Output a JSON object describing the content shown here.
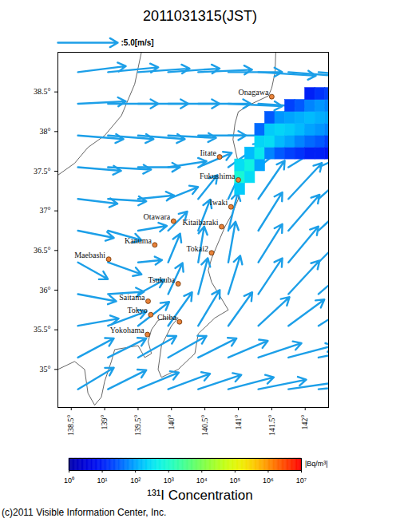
{
  "chart_data": {
    "type": "map",
    "title": "2011031315(JST)",
    "xlim": [
      138.3,
      142.35
    ],
    "ylim": [
      34.52,
      39.0
    ],
    "xticks": [
      {
        "value": 138.5,
        "label": "138.5°"
      },
      {
        "value": 139,
        "label": "139°"
      },
      {
        "value": 139.5,
        "label": "139.5°"
      },
      {
        "value": 140,
        "label": "140°"
      },
      {
        "value": 140.5,
        "label": "140.5°"
      },
      {
        "value": 141,
        "label": "141°"
      },
      {
        "value": 141.5,
        "label": "141.5°"
      },
      {
        "value": 142,
        "label": "142°"
      }
    ],
    "yticks": [
      {
        "value": 35,
        "label": "35°"
      },
      {
        "value": 35.5,
        "label": "35.5°"
      },
      {
        "value": 36,
        "label": "36°"
      },
      {
        "value": 36.5,
        "label": "36.5°"
      },
      {
        "value": 37,
        "label": "37°"
      },
      {
        "value": 37.5,
        "label": "37.5°"
      },
      {
        "value": 38,
        "label": "38°"
      },
      {
        "value": 38.5,
        "label": "38.5°"
      }
    ],
    "scale_arrow": {
      "value": 5.0,
      "label": ":5.0[m/s]"
    },
    "wind": {
      "lons": [
        138.6,
        139.05,
        139.5,
        139.95,
        140.4,
        140.85,
        141.3,
        141.75,
        142.2
      ],
      "lats": [
        38.75,
        38.35,
        37.95,
        37.55,
        37.15,
        36.75,
        36.35,
        35.95,
        35.55,
        35.15,
        34.75
      ],
      "u": [
        [
          4.0,
          4.2,
          4.3,
          4.3,
          4.5,
          4.5,
          4.8,
          5.0,
          5.0
        ],
        [
          4.0,
          4.2,
          4.2,
          4.3,
          4.4,
          4.5,
          4.6,
          4.8,
          4.6
        ],
        [
          3.8,
          3.8,
          3.9,
          4.0,
          4.0,
          4.0,
          4.3,
          4.5,
          4.6
        ],
        [
          3.6,
          3.6,
          3.5,
          3.2,
          2.8,
          2.8,
          3.2,
          3.6,
          4.0
        ],
        [
          3.3,
          3.2,
          3.0,
          2.5,
          1.6,
          1.4,
          2.2,
          2.8,
          3.2
        ],
        [
          3.0,
          2.8,
          2.4,
          1.6,
          1.0,
          0.8,
          2.0,
          2.6,
          3.0
        ],
        [
          2.5,
          2.8,
          2.0,
          1.0,
          0.5,
          0.6,
          2.0,
          2.5,
          2.8
        ],
        [
          3.2,
          3.0,
          2.2,
          1.2,
          0.8,
          1.0,
          2.0,
          2.6,
          3.0
        ],
        [
          3.4,
          3.2,
          2.6,
          2.0,
          1.8,
          2.0,
          2.6,
          3.0,
          3.2
        ],
        [
          3.0,
          3.2,
          3.2,
          3.2,
          3.2,
          3.3,
          3.6,
          3.8,
          4.0
        ],
        [
          3.0,
          3.2,
          3.4,
          3.5,
          3.6,
          3.8,
          4.0,
          4.2,
          4.4
        ]
      ],
      "v": [
        [
          0.5,
          0.4,
          0.3,
          0.3,
          0.2,
          0.0,
          -0.3,
          -0.4,
          -0.5
        ],
        [
          0.2,
          0.0,
          0.0,
          0.0,
          0.0,
          -0.2,
          -0.3,
          -0.5,
          -0.6
        ],
        [
          -0.3,
          -0.3,
          -0.3,
          -0.2,
          0.0,
          0.0,
          0.3,
          0.0,
          -0.4
        ],
        [
          -0.3,
          -0.2,
          0.0,
          0.5,
          1.2,
          2.0,
          2.5,
          2.2,
          1.8
        ],
        [
          -0.4,
          -0.2,
          0.3,
          1.0,
          2.0,
          3.0,
          3.2,
          3.0,
          2.8
        ],
        [
          -0.6,
          -0.8,
          0.4,
          1.6,
          2.6,
          3.2,
          3.2,
          3.0,
          2.8
        ],
        [
          -1.4,
          -1.0,
          0.2,
          2.4,
          3.0,
          3.4,
          3.2,
          3.0,
          2.8
        ],
        [
          -0.6,
          0.2,
          1.2,
          2.6,
          3.0,
          3.2,
          3.0,
          2.8,
          2.6
        ],
        [
          0.6,
          1.2,
          2.0,
          2.8,
          3.0,
          2.8,
          2.4,
          2.2,
          2.0
        ],
        [
          1.6,
          1.6,
          1.8,
          1.8,
          1.6,
          1.4,
          1.2,
          1.0,
          0.8
        ],
        [
          1.8,
          1.6,
          1.4,
          1.3,
          1.2,
          1.0,
          0.8,
          0.6,
          0.4
        ]
      ]
    },
    "coastlines": [
      [
        [
          141.56,
          39.0
        ],
        [
          141.55,
          38.75
        ],
        [
          141.5,
          38.55
        ],
        [
          141.45,
          38.45
        ],
        [
          141.2,
          38.35
        ],
        [
          141.0,
          38.25
        ],
        [
          140.95,
          38.1
        ],
        [
          140.92,
          37.9
        ],
        [
          141.0,
          37.6
        ],
        [
          141.03,
          37.4
        ],
        [
          141.0,
          37.15
        ],
        [
          140.9,
          36.95
        ],
        [
          140.8,
          36.8
        ],
        [
          140.7,
          36.6
        ],
        [
          140.6,
          36.4
        ],
        [
          140.55,
          36.25
        ],
        [
          140.6,
          36.1
        ],
        [
          140.85,
          35.75
        ],
        [
          140.65,
          35.65
        ],
        [
          140.4,
          35.45
        ],
        [
          140.35,
          35.2
        ],
        [
          140.1,
          35.0
        ],
        [
          139.85,
          34.9
        ],
        [
          139.8,
          35.0
        ],
        [
          139.85,
          35.3
        ],
        [
          140.0,
          35.55
        ],
        [
          140.1,
          35.65
        ],
        [
          139.95,
          35.65
        ],
        [
          139.8,
          35.62
        ],
        [
          139.7,
          35.5
        ],
        [
          139.65,
          35.35
        ],
        [
          139.7,
          35.2
        ],
        [
          139.6,
          35.15
        ],
        [
          139.5,
          35.3
        ],
        [
          139.15,
          35.25
        ],
        [
          139.1,
          35.1
        ],
        [
          139.0,
          34.85
        ],
        [
          138.95,
          34.65
        ],
        [
          138.85,
          34.55
        ],
        [
          138.75,
          34.7
        ],
        [
          138.7,
          35.0
        ],
        [
          138.55,
          35.1
        ],
        [
          138.3,
          35.0
        ]
      ],
      [
        [
          139.55,
          39.0
        ],
        [
          139.45,
          38.6
        ],
        [
          139.25,
          38.2
        ],
        [
          139.0,
          37.95
        ],
        [
          138.75,
          37.8
        ],
        [
          138.55,
          37.6
        ],
        [
          138.3,
          37.45
        ]
      ]
    ],
    "cities": [
      {
        "name": "Onagawa",
        "lon": 141.5,
        "lat": 38.44
      },
      {
        "name": "Iitate",
        "lon": 140.72,
        "lat": 37.68
      },
      {
        "name": "Fukushima",
        "lon": 141.0,
        "lat": 37.39
      },
      {
        "name": "Iwaki",
        "lon": 140.89,
        "lat": 37.05
      },
      {
        "name": "Otawara",
        "lon": 140.03,
        "lat": 36.87
      },
      {
        "name": "Kitaibaraki",
        "lon": 140.75,
        "lat": 36.8
      },
      {
        "name": "Kanuma",
        "lon": 139.75,
        "lat": 36.57
      },
      {
        "name": "Tokai2",
        "lon": 140.6,
        "lat": 36.47
      },
      {
        "name": "Maebashi",
        "lon": 139.06,
        "lat": 36.39
      },
      {
        "name": "Tsukuba",
        "lon": 140.1,
        "lat": 36.08
      },
      {
        "name": "Saitama",
        "lon": 139.65,
        "lat": 35.86
      },
      {
        "name": "Tokyo",
        "lon": 139.69,
        "lat": 35.69
      },
      {
        "name": "Chiba",
        "lon": 140.12,
        "lat": 35.6
      },
      {
        "name": "Yokohama",
        "lon": 139.64,
        "lat": 35.44
      }
    ],
    "plume": {
      "cell_size": 0.15,
      "cells": [
        [
          140.95,
          37.2,
          200
        ],
        [
          140.95,
          37.35,
          800
        ],
        [
          140.95,
          37.5,
          300
        ],
        [
          141.1,
          37.35,
          300
        ],
        [
          141.1,
          37.5,
          600
        ],
        [
          141.1,
          37.65,
          150
        ],
        [
          141.25,
          37.5,
          100
        ],
        [
          141.25,
          37.65,
          400
        ],
        [
          141.25,
          37.8,
          250
        ],
        [
          141.25,
          37.95,
          40
        ],
        [
          141.4,
          37.65,
          60
        ],
        [
          141.4,
          37.8,
          300
        ],
        [
          141.4,
          37.95,
          200
        ],
        [
          141.4,
          38.1,
          30
        ],
        [
          141.55,
          37.65,
          30
        ],
        [
          141.55,
          37.8,
          150
        ],
        [
          141.55,
          37.95,
          250
        ],
        [
          141.55,
          38.1,
          80
        ],
        [
          141.7,
          37.65,
          20
        ],
        [
          141.7,
          37.8,
          100
        ],
        [
          141.7,
          37.95,
          200
        ],
        [
          141.7,
          38.1,
          100
        ],
        [
          141.7,
          38.25,
          20
        ],
        [
          141.85,
          37.65,
          15
        ],
        [
          141.85,
          37.8,
          60
        ],
        [
          141.85,
          37.95,
          150
        ],
        [
          141.85,
          38.1,
          120
        ],
        [
          141.85,
          38.25,
          30
        ],
        [
          142.0,
          37.65,
          10
        ],
        [
          142.0,
          37.8,
          40
        ],
        [
          142.0,
          37.95,
          100
        ],
        [
          142.0,
          38.1,
          150
        ],
        [
          142.0,
          38.25,
          60
        ],
        [
          142.0,
          38.4,
          10
        ],
        [
          142.15,
          37.65,
          10
        ],
        [
          142.15,
          37.8,
          30
        ],
        [
          142.15,
          37.95,
          80
        ],
        [
          142.15,
          38.1,
          120
        ],
        [
          142.15,
          38.25,
          80
        ],
        [
          142.15,
          38.4,
          15
        ],
        [
          142.3,
          37.65,
          8
        ],
        [
          142.3,
          37.8,
          20
        ],
        [
          142.3,
          37.95,
          60
        ],
        [
          142.3,
          38.1,
          100
        ],
        [
          142.3,
          38.25,
          60
        ],
        [
          142.3,
          38.4,
          20
        ]
      ]
    },
    "colorbar": {
      "label": "¹³¹I Concentration",
      "units": "|Bq/m³|",
      "range": [
        1,
        10000000
      ],
      "ticks": [
        {
          "value": 1,
          "label": "10⁰"
        },
        {
          "value": 10,
          "label": "10¹"
        },
        {
          "value": 100,
          "label": "10²"
        },
        {
          "value": 1000,
          "label": "10³"
        },
        {
          "value": 10000,
          "label": "10⁴"
        },
        {
          "value": 100000,
          "label": "10⁵"
        },
        {
          "value": 1000000,
          "label": "10⁶"
        },
        {
          "value": 10000000,
          "label": "10⁷"
        }
      ]
    },
    "credit": "(c)2011 Visible Information Center, Inc."
  }
}
